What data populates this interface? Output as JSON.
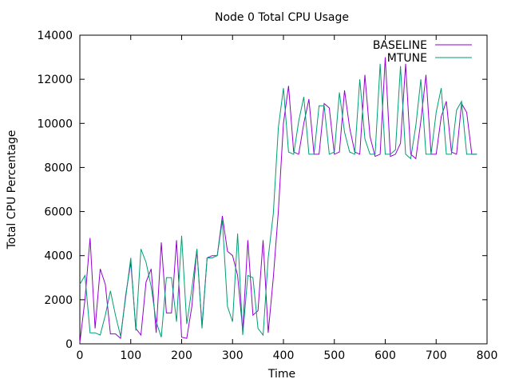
{
  "chart_data": {
    "type": "line",
    "title": "Node 0 Total CPU Usage",
    "xlabel": "Time",
    "ylabel": "Total CPU Percentage",
    "xlim": [
      0,
      800
    ],
    "ylim": [
      0,
      14000
    ],
    "xticks": [
      0,
      100,
      200,
      300,
      400,
      500,
      600,
      700,
      800
    ],
    "yticks": [
      0,
      2000,
      4000,
      6000,
      8000,
      10000,
      12000,
      14000
    ],
    "grid": false,
    "legend_position": "top-right",
    "x_start": 0,
    "x_step": 10,
    "series": [
      {
        "name": "BASELINE",
        "color": "#9400d3",
        "values": [
          50,
          2000,
          4800,
          700,
          3400,
          2700,
          450,
          450,
          250,
          2200,
          3700,
          700,
          400,
          2800,
          3400,
          500,
          4600,
          1400,
          1400,
          4700,
          300,
          250,
          1700,
          4300,
          800,
          3900,
          4000,
          4000,
          5800,
          4200,
          4000,
          3100,
          600,
          4700,
          1300,
          1500,
          4700,
          500,
          3000,
          6000,
          10000,
          11700,
          8700,
          8600,
          10000,
          11100,
          8600,
          8600,
          10900,
          10700,
          8600,
          8700,
          11500,
          9800,
          8700,
          8600,
          12200,
          9400,
          8500,
          8600,
          13000,
          8500,
          8600,
          9100,
          12700,
          8600,
          8400,
          10100,
          12200,
          8600,
          8600,
          10300,
          11000,
          8700,
          8600,
          10900,
          10500,
          8600,
          8600
        ]
      },
      {
        "name": "MTUNE",
        "color": "#009e73",
        "values": [
          2700,
          3100,
          500,
          500,
          400,
          1300,
          2400,
          1300,
          350,
          2100,
          3900,
          600,
          4300,
          3700,
          2600,
          1000,
          300,
          3000,
          3000,
          1000,
          4900,
          900,
          2500,
          4300,
          700,
          3900,
          3900,
          4000,
          5600,
          1700,
          1000,
          5000,
          400,
          3100,
          3000,
          700,
          400,
          3900,
          5900,
          9800,
          11600,
          8700,
          8600,
          10100,
          11200,
          8600,
          8600,
          10800,
          10800,
          8600,
          8700,
          11400,
          9600,
          8700,
          8600,
          12000,
          9300,
          8600,
          8600,
          12700,
          8600,
          8600,
          8800,
          12600,
          8600,
          8400,
          9900,
          12000,
          8600,
          8600,
          10500,
          11600,
          8600,
          8600,
          10600,
          11000,
          8600,
          8600,
          8600
        ]
      }
    ]
  }
}
